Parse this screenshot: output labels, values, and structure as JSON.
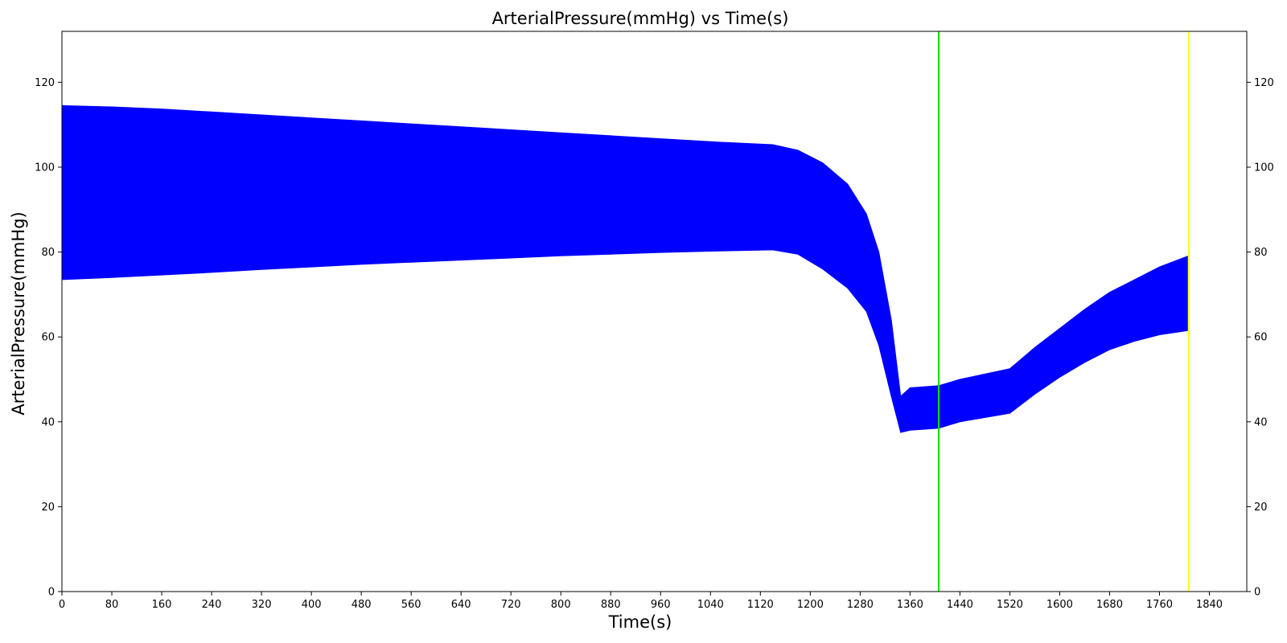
{
  "chart_data": {
    "type": "area",
    "title": "ArterialPressure(mmHg) vs Time(s)",
    "xlabel": "Time(s)",
    "ylabel": "ArterialPressure(mmHg)",
    "xlim": [
      0,
      1900
    ],
    "ylim": [
      0,
      132
    ],
    "x_ticks": [
      0,
      80,
      160,
      240,
      320,
      400,
      480,
      560,
      640,
      720,
      800,
      880,
      960,
      1040,
      1120,
      1200,
      1280,
      1360,
      1440,
      1520,
      1600,
      1680,
      1760,
      1840
    ],
    "y_ticks": [
      0,
      20,
      40,
      60,
      80,
      100,
      120
    ],
    "y_ticks_right": [
      0,
      20,
      40,
      60,
      80,
      100,
      120
    ],
    "grid": false,
    "series": [
      {
        "color": "#0000ff",
        "x": [
          0,
          80,
          160,
          240,
          320,
          400,
          480,
          560,
          640,
          720,
          800,
          880,
          960,
          1040,
          1140,
          1180,
          1220,
          1260,
          1290,
          1310,
          1330,
          1345,
          1360,
          1406,
          1440,
          1520,
          1560,
          1600,
          1640,
          1680,
          1720,
          1760,
          1805
        ],
        "upper": [
          114.5,
          114.2,
          113.7,
          113.0,
          112.3,
          111.6,
          110.9,
          110.2,
          109.5,
          108.8,
          108.1,
          107.4,
          106.7,
          106.0,
          105.3,
          104.0,
          101.0,
          96.0,
          89.0,
          80.0,
          64.0,
          46.0,
          48.0,
          48.5,
          50.0,
          52.5,
          57.5,
          62.0,
          66.5,
          70.5,
          73.5,
          76.5,
          79.0
        ],
        "lower": [
          73.5,
          74.0,
          74.6,
          75.2,
          75.9,
          76.5,
          77.1,
          77.6,
          78.1,
          78.6,
          79.1,
          79.5,
          79.9,
          80.2,
          80.5,
          79.5,
          76.0,
          71.5,
          66.0,
          58.0,
          46.0,
          37.5,
          38.0,
          38.5,
          40.0,
          42.0,
          46.5,
          50.5,
          54.0,
          57.0,
          59.0,
          60.5,
          61.5
        ]
      }
    ],
    "vlines": [
      {
        "x": 1406,
        "color": "#00dd00"
      },
      {
        "x": 1807,
        "color": "#ffff00"
      }
    ]
  }
}
